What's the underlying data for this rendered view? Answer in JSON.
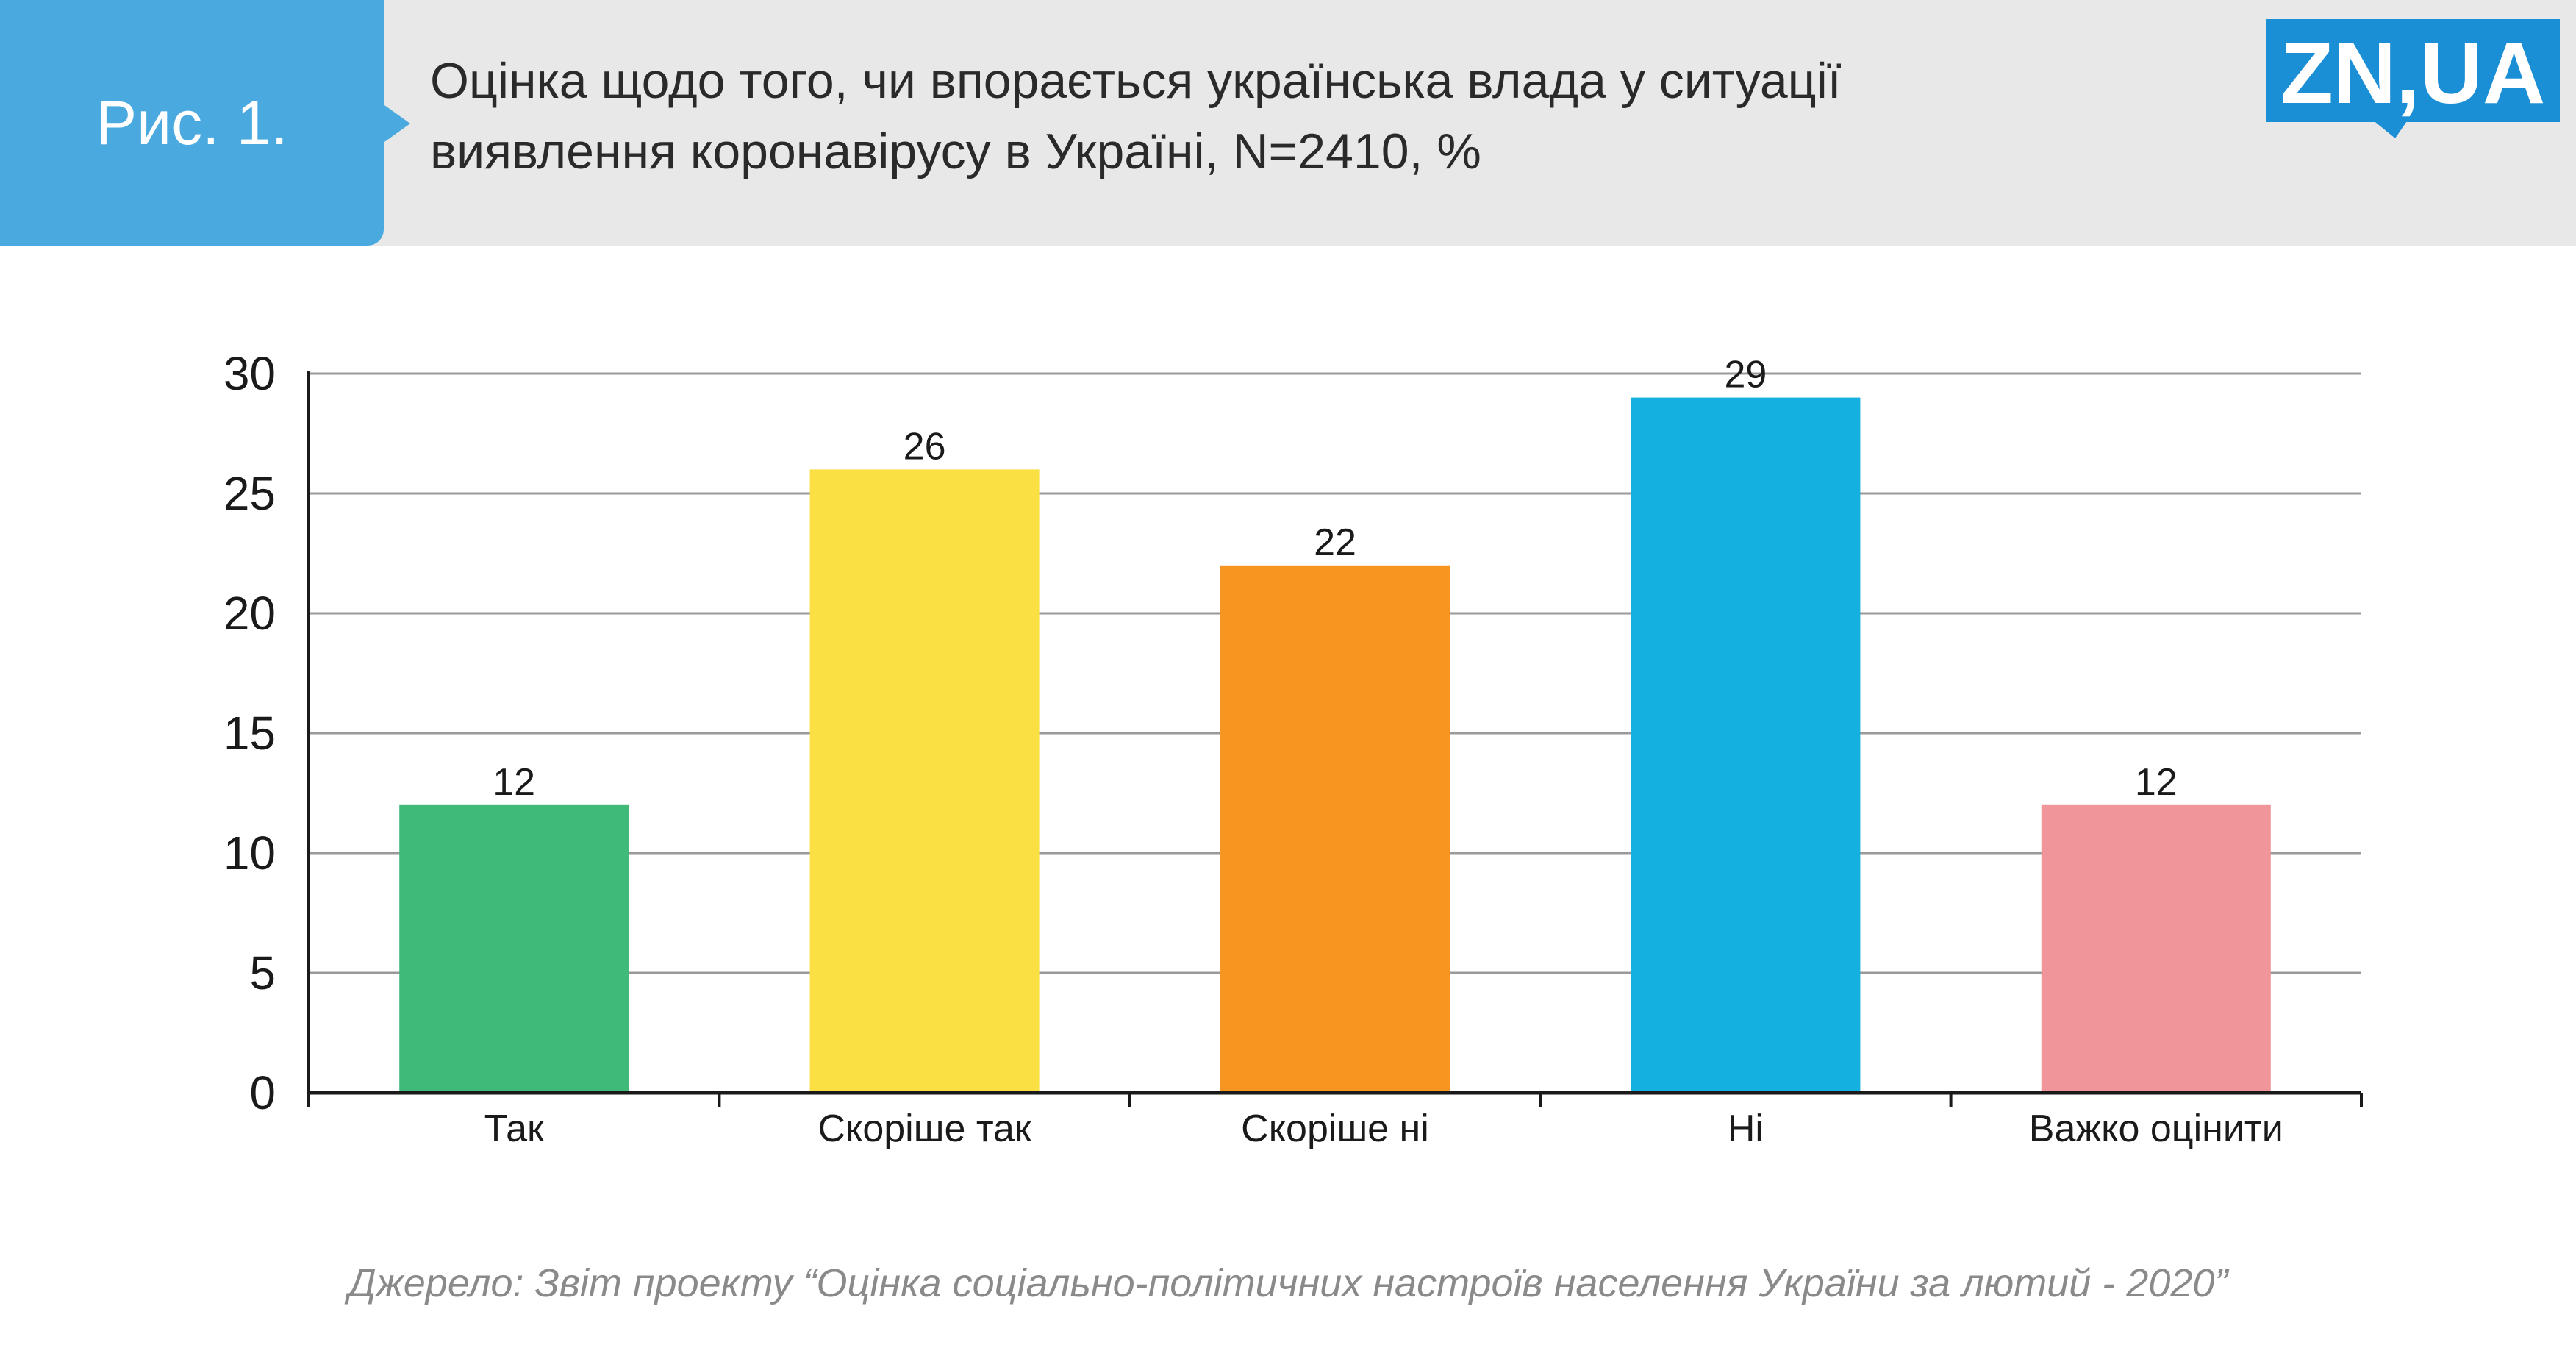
{
  "header": {
    "figure_label": "Рис. 1.",
    "title_line1": "Оцінка щодо того, чи впорається українська влада у ситуації",
    "title_line2": "виявлення коронавірусу в Україні, N=2410, %"
  },
  "logo": {
    "text": "ZN,UA",
    "color": "#1a8fd6"
  },
  "chart_data": {
    "type": "bar",
    "categories": [
      "Так",
      "Скоріше так",
      "Скоріше ні",
      "Ні",
      "Важко оцінити"
    ],
    "values": [
      12,
      26,
      22,
      29,
      12
    ],
    "colors": [
      "#3fba79",
      "#fbe043",
      "#f79521",
      "#13b0e0",
      "#f0959a"
    ],
    "ylim": [
      0,
      30
    ],
    "yticks": [
      0,
      5,
      10,
      15,
      20,
      25,
      30
    ],
    "grid": true,
    "data_labels": true
  },
  "source": "Джерело: Звіт проекту “Оцінка соціально-політичних настроїв населення України за лютий - 2020”"
}
